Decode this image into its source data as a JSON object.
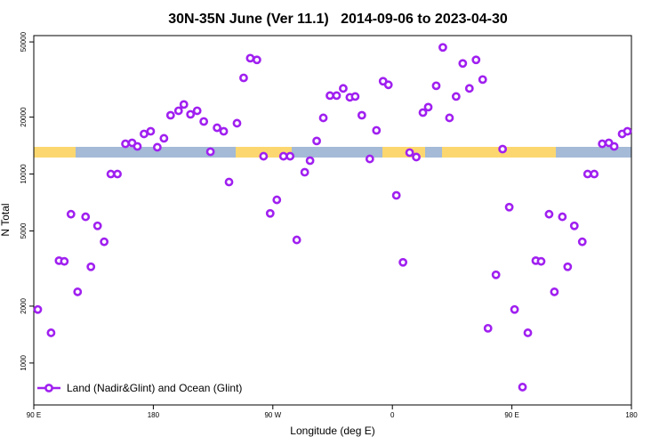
{
  "chart_data": {
    "type": "scatter",
    "title": "30N-35N June (Ver 11.1)   2014-09-06 to 2023-04-30",
    "x_label": "Longitude (deg E)",
    "y_label": "N Total",
    "xlim": [
      90,
      540
    ],
    "xticks": [
      {
        "value": 90,
        "label": "90 E"
      },
      180,
      {
        "value": 270,
        "label": "90 W"
      },
      {
        "value": 360,
        "label": "0"
      },
      {
        "value": 450,
        "label": "90 E"
      },
      {
        "value": 540,
        "label": "180"
      }
    ],
    "ylim": [
      600,
      54000
    ],
    "yticks": [
      1000,
      2000,
      5000,
      10000,
      20000,
      50000
    ],
    "log_y": true,
    "legend": "bottom-left",
    "series": [
      {
        "name": "Land (Nadir&Glint) and Ocean (Glint)",
        "color": "#a020f0",
        "x": [
          93,
          103,
          109,
          113,
          118,
          123,
          129,
          133,
          138,
          143,
          148,
          153,
          159,
          164,
          168,
          173,
          178,
          183,
          188,
          193,
          199,
          203,
          208,
          213,
          218,
          223,
          228,
          233,
          237,
          243,
          248,
          253,
          258,
          263,
          268,
          273,
          278,
          283,
          288,
          294,
          298,
          303,
          308,
          313,
          318,
          323,
          328,
          332,
          337,
          343,
          348,
          353,
          357,
          363,
          368,
          373,
          378,
          383,
          387,
          393,
          398,
          403,
          408,
          413,
          418,
          423,
          428,
          432,
          438,
          443,
          448,
          452,
          458,
          462,
          468,
          472,
          478,
          482,
          488,
          492,
          497,
          503,
          507,
          512,
          518,
          523,
          527,
          533,
          537
        ],
        "values": [
          1920,
          1445,
          3480,
          3450,
          6130,
          2380,
          5940,
          3230,
          5320,
          4380,
          10000,
          10000,
          14450,
          14620,
          14000,
          16300,
          16830,
          13860,
          15450,
          20460,
          21610,
          23330,
          20690,
          21610,
          18970,
          13120,
          17570,
          16830,
          9070,
          18570,
          32270,
          41020,
          40180,
          12420,
          6190,
          7300,
          12420,
          12420,
          4480,
          10220,
          11770,
          14960,
          19820,
          26000,
          26000,
          28380,
          25460,
          25720,
          20460,
          12020,
          17020,
          30970,
          29650,
          7710,
          3410,
          12980,
          12300,
          21140,
          22590,
          29310,
          46780,
          19820,
          25720,
          38470,
          28380,
          40180,
          31620,
          1527,
          2930,
          13550,
          6680,
          1920,
          746,
          1445,
          3480,
          3450,
          6130,
          2380,
          5940,
          3230,
          5320,
          4380,
          10000,
          10000,
          14450,
          14620,
          14000,
          16300,
          16830
        ]
      }
    ]
  }
}
